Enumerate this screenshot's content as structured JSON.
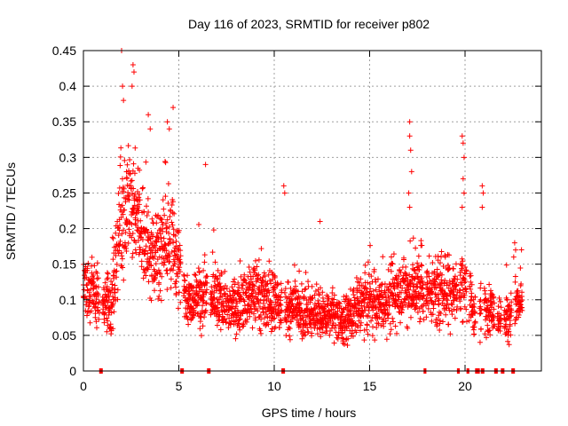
{
  "chart_data": {
    "type": "scatter",
    "title": "Day 116 of 2023, SRMTID for receiver p802",
    "xlabel": "GPS time / hours",
    "ylabel": "SRMTID / TECUs",
    "xlim": [
      0,
      24
    ],
    "ylim": [
      0,
      0.45
    ],
    "xticks": [
      0,
      5,
      10,
      15,
      20
    ],
    "xtick_labels": [
      "0",
      "5",
      "10",
      "15",
      "20"
    ],
    "yticks": [
      0,
      0.05,
      0.1,
      0.15,
      0.2,
      0.25,
      0.3,
      0.35,
      0.4,
      0.45
    ],
    "ytick_labels": [
      "0",
      "0.05",
      "0.1",
      "0.15",
      "0.2",
      "0.25",
      "0.3",
      "0.35",
      "0.4",
      "0.45"
    ],
    "grid": true,
    "marker": "+",
    "color": "#ff0000",
    "background": "#ffffff",
    "envelope": {
      "x": [
        0.0,
        0.5,
        1.0,
        1.5,
        2.0,
        2.5,
        3.0,
        3.5,
        4.0,
        4.5,
        5.0,
        5.5,
        6.0,
        6.5,
        7.0,
        7.5,
        8.0,
        8.5,
        9.0,
        9.5,
        10.0,
        10.5,
        11.0,
        11.5,
        12.0,
        12.5,
        13.0,
        13.5,
        14.0,
        14.5,
        15.0,
        15.5,
        16.0,
        16.5,
        17.0,
        17.5,
        18.0,
        18.5,
        19.0,
        19.5,
        20.0,
        20.5,
        21.0,
        21.5,
        22.0,
        22.5,
        23.0
      ],
      "center": [
        0.12,
        0.11,
        0.09,
        0.1,
        0.22,
        0.24,
        0.2,
        0.16,
        0.17,
        0.19,
        0.15,
        0.1,
        0.11,
        0.11,
        0.1,
        0.09,
        0.09,
        0.1,
        0.11,
        0.1,
        0.1,
        0.09,
        0.09,
        0.08,
        0.08,
        0.08,
        0.08,
        0.07,
        0.08,
        0.09,
        0.1,
        0.09,
        0.1,
        0.11,
        0.11,
        0.12,
        0.11,
        0.11,
        0.12,
        0.11,
        0.12,
        0.08,
        0.09,
        0.09,
        0.07,
        0.09,
        0.1
      ],
      "spread": [
        0.04,
        0.04,
        0.03,
        0.04,
        0.07,
        0.07,
        0.06,
        0.05,
        0.06,
        0.06,
        0.05,
        0.03,
        0.04,
        0.04,
        0.04,
        0.03,
        0.03,
        0.04,
        0.04,
        0.04,
        0.04,
        0.03,
        0.03,
        0.03,
        0.03,
        0.03,
        0.03,
        0.03,
        0.03,
        0.04,
        0.04,
        0.03,
        0.04,
        0.04,
        0.04,
        0.04,
        0.04,
        0.04,
        0.05,
        0.04,
        0.04,
        0.03,
        0.04,
        0.03,
        0.03,
        0.03,
        0.03
      ]
    },
    "spikes": [
      {
        "x": 2.0,
        "y": 0.45
      },
      {
        "x": 2.05,
        "y": 0.4
      },
      {
        "x": 2.1,
        "y": 0.38
      },
      {
        "x": 2.6,
        "y": 0.43
      },
      {
        "x": 2.65,
        "y": 0.42
      },
      {
        "x": 2.55,
        "y": 0.4
      },
      {
        "x": 3.4,
        "y": 0.36
      },
      {
        "x": 3.5,
        "y": 0.34
      },
      {
        "x": 4.7,
        "y": 0.37
      },
      {
        "x": 4.4,
        "y": 0.35
      },
      {
        "x": 4.5,
        "y": 0.34
      },
      {
        "x": 6.4,
        "y": 0.29
      },
      {
        "x": 10.5,
        "y": 0.26
      },
      {
        "x": 10.55,
        "y": 0.25
      },
      {
        "x": 12.4,
        "y": 0.21
      },
      {
        "x": 17.1,
        "y": 0.35
      },
      {
        "x": 17.1,
        "y": 0.33
      },
      {
        "x": 17.15,
        "y": 0.31
      },
      {
        "x": 17.2,
        "y": 0.28
      },
      {
        "x": 17.05,
        "y": 0.25
      },
      {
        "x": 17.1,
        "y": 0.23
      },
      {
        "x": 19.85,
        "y": 0.33
      },
      {
        "x": 19.9,
        "y": 0.32
      },
      {
        "x": 19.95,
        "y": 0.3
      },
      {
        "x": 19.9,
        "y": 0.27
      },
      {
        "x": 19.95,
        "y": 0.25
      },
      {
        "x": 19.85,
        "y": 0.23
      },
      {
        "x": 20.9,
        "y": 0.26
      },
      {
        "x": 20.95,
        "y": 0.25
      },
      {
        "x": 20.9,
        "y": 0.23
      },
      {
        "x": 22.6,
        "y": 0.18
      },
      {
        "x": 22.65,
        "y": 0.17
      },
      {
        "x": 22.55,
        "y": 0.16
      }
    ],
    "zero_segments": [
      {
        "start": 0.85,
        "end": 1.0
      },
      {
        "start": 5.1,
        "end": 5.25
      },
      {
        "start": 6.5,
        "end": 6.65
      },
      {
        "start": 10.4,
        "end": 10.55
      },
      {
        "start": 17.85,
        "end": 17.95
      },
      {
        "start": 19.6,
        "end": 19.7
      },
      {
        "start": 20.1,
        "end": 20.2
      },
      {
        "start": 20.55,
        "end": 20.75
      },
      {
        "start": 20.85,
        "end": 21.0
      },
      {
        "start": 21.55,
        "end": 21.7
      },
      {
        "start": 21.9,
        "end": 22.05
      },
      {
        "start": 22.45,
        "end": 22.6
      }
    ]
  }
}
